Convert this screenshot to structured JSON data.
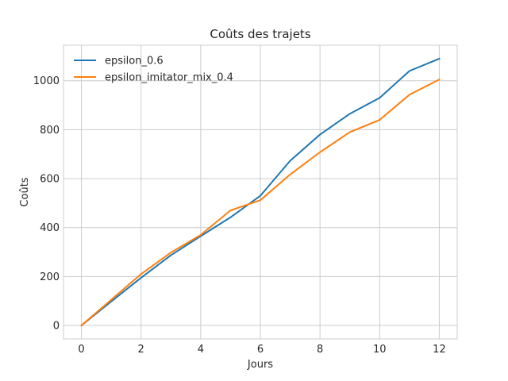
{
  "chart_data": {
    "type": "line",
    "title": "Coûts des trajets",
    "xlabel": "Jours",
    "ylabel": "Coûts",
    "x": [
      0,
      1,
      2,
      3,
      4,
      5,
      6,
      7,
      8,
      9,
      10,
      11,
      12
    ],
    "xlim": [
      -0.6,
      12.6
    ],
    "ylim": [
      -55,
      1145
    ],
    "xticks": [
      0,
      2,
      4,
      6,
      8,
      10,
      12
    ],
    "yticks": [
      0,
      200,
      400,
      600,
      800,
      1000
    ],
    "xtick_labels": [
      "0",
      "2",
      "4",
      "6",
      "8",
      "10",
      "12"
    ],
    "ytick_labels": [
      "0",
      "200",
      "400",
      "600",
      "800",
      "1000"
    ],
    "grid": true,
    "legend_position": "top-left",
    "series": [
      {
        "name": "epsilon_0.6",
        "color": "#1f77b4",
        "values": [
          0,
          98,
          195,
          287,
          365,
          442,
          530,
          673,
          780,
          865,
          930,
          1040,
          1090
        ]
      },
      {
        "name": "epsilon_imitator_mix_0.4",
        "color": "#ff7f0e",
        "values": [
          0,
          105,
          210,
          298,
          370,
          470,
          512,
          617,
          708,
          790,
          840,
          943,
          1005
        ]
      }
    ]
  }
}
